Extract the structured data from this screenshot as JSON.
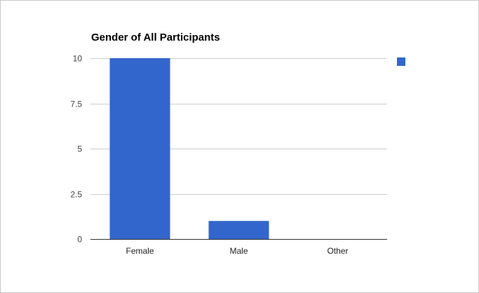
{
  "chart_data": {
    "type": "bar",
    "title": "Gender of All Participants",
    "xlabel": "",
    "ylabel": "",
    "categories": [
      "Female",
      "Male",
      "Other"
    ],
    "values": [
      10,
      1,
      0
    ],
    "ylim": [
      0,
      10
    ],
    "yticks": [
      0,
      2.5,
      5,
      7.5,
      10
    ],
    "ytick_labels": [
      "0",
      "2.5",
      "5",
      "7.5",
      "10"
    ],
    "grid": true,
    "legend": {
      "position": "right",
      "entries": [
        ""
      ]
    },
    "colors": {
      "bar": "#3366cc",
      "grid": "#cccccc",
      "axis": "#333333"
    }
  }
}
